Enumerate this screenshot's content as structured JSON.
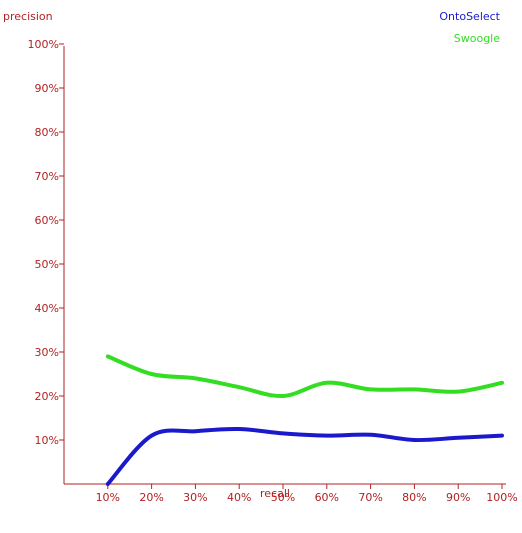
{
  "chart_data": {
    "type": "line",
    "ylabel": "precision",
    "xlabel": "recall",
    "categories": [
      "10%",
      "20%",
      "30%",
      "40%",
      "50%",
      "60%",
      "70%",
      "80%",
      "90%",
      "100%"
    ],
    "x": [
      10,
      20,
      30,
      40,
      50,
      60,
      70,
      80,
      90,
      100
    ],
    "y_ticks": [
      "10%",
      "20%",
      "30%",
      "40%",
      "50%",
      "60%",
      "70%",
      "80%",
      "90%",
      "100%"
    ],
    "xlim": [
      0,
      100
    ],
    "ylim": [
      0,
      100
    ],
    "grid": false,
    "legend": "top-right",
    "axis_color": "#b22222",
    "series": [
      {
        "name": "OntoSelect",
        "color": "#1a1acc",
        "values": [
          0,
          11,
          12,
          12.5,
          11.5,
          11,
          11.2,
          10,
          10.5,
          11
        ]
      },
      {
        "name": "Swoogle",
        "color": "#33dd22",
        "values": [
          29,
          25,
          24,
          22,
          20,
          23,
          21.5,
          21.5,
          21,
          23
        ]
      }
    ]
  }
}
